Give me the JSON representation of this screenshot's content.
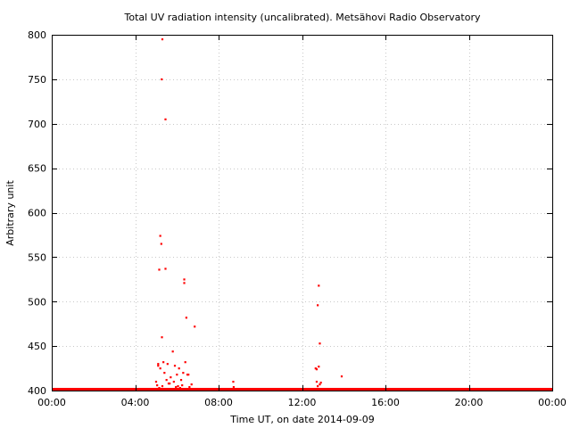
{
  "chart_data": {
    "type": "scatter",
    "title": "Total UV radiation intensity (uncalibrated). Metsähovi Radio Observatory",
    "xlabel": "Time UT, on date 2014-09-09",
    "ylabel": "Arbitrary unit",
    "xlim": [
      0,
      24
    ],
    "ylim": [
      400,
      800
    ],
    "x_ticks": [
      "00:00",
      "04:00",
      "08:00",
      "12:00",
      "16:00",
      "20:00",
      "00:00"
    ],
    "y_ticks": [
      "400",
      "450",
      "500",
      "550",
      "600",
      "650",
      "700",
      "750",
      "800"
    ],
    "grid": true,
    "color": "#ff0000",
    "baseline": {
      "value": 400,
      "x_from": 0,
      "x_to": 24
    },
    "series": [
      {
        "x": [
          5.3,
          5.27,
          5.45,
          5.2,
          5.25,
          5.15,
          5.45,
          5.28,
          6.35,
          6.35,
          6.45,
          6.85,
          5.1,
          5.8,
          5.1,
          5.2,
          5.35,
          5.55,
          5.9,
          6.1,
          6.4,
          6.5,
          5.4,
          5.7,
          6.0,
          6.3,
          5.5,
          5.85,
          6.2,
          6.55,
          5.0,
          5.6,
          6.05,
          6.7,
          5.05,
          5.3,
          5.65,
          5.95,
          6.25,
          6.6,
          5.15,
          5.75,
          6.15,
          6.45,
          8.7,
          8.72,
          12.7,
          12.75,
          12.85,
          12.9,
          12.8,
          12.75,
          12.85,
          12.65,
          12.7,
          12.8,
          13.9
        ],
        "y": [
          795,
          750,
          705,
          574,
          565,
          536,
          537,
          460,
          525,
          521,
          482,
          472,
          430,
          444,
          428,
          425,
          432,
          430,
          428,
          425,
          432,
          418,
          420,
          415,
          418,
          420,
          412,
          410,
          412,
          418,
          410,
          408,
          405,
          407,
          406,
          405,
          408,
          404,
          406,
          404,
          403,
          402,
          403,
          402,
          410,
          404,
          410,
          405,
          407,
          409,
          518,
          496,
          453,
          425,
          424,
          427,
          416
        ]
      }
    ]
  }
}
